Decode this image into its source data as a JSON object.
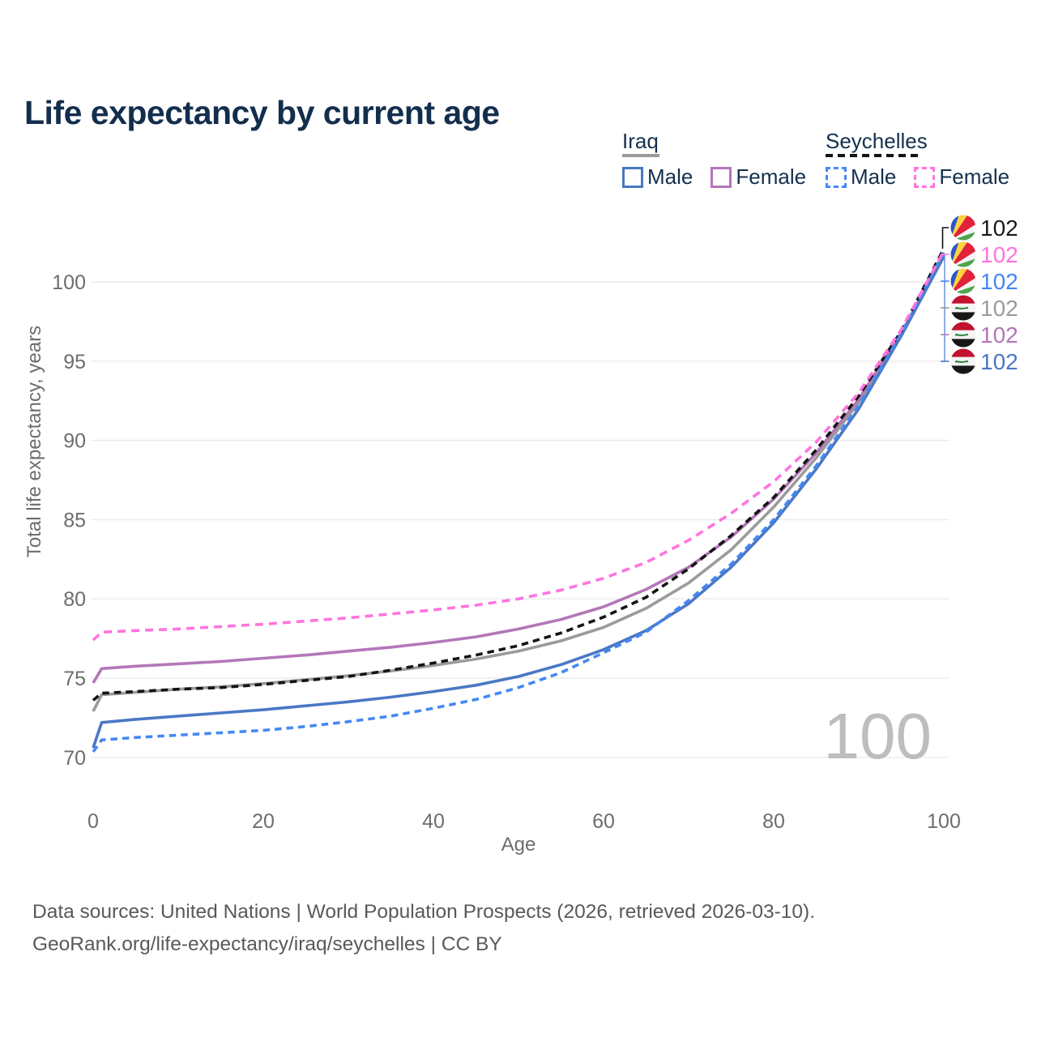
{
  "title": "Life expectancy by current age",
  "legend": {
    "groups": [
      {
        "country": "Iraq",
        "line_style": "solid",
        "underline_color": "#9a9a9a",
        "items": [
          {
            "label": "Male",
            "color": "#4a78c4"
          },
          {
            "label": "Female",
            "color": "#b377b9"
          }
        ]
      },
      {
        "country": "Seychelles",
        "line_style": "dashed",
        "underline_color": "#151515",
        "items": [
          {
            "label": "Male",
            "color": "#4488f2"
          },
          {
            "label": "Female",
            "color": "#ff74de"
          }
        ]
      }
    ]
  },
  "chart_data": {
    "type": "line",
    "title": "Life expectancy by current age",
    "xlabel": "Age",
    "ylabel": "Total life expectancy, years",
    "x_ticks": [
      0,
      20,
      40,
      60,
      80,
      100
    ],
    "y_ticks": [
      70,
      75,
      80,
      85,
      90,
      95,
      100
    ],
    "xlim": [
      0,
      100
    ],
    "ylim": [
      69.5,
      103
    ],
    "grid": "horizontal-only",
    "legend_position": "top-right",
    "ages": [
      0,
      1,
      5,
      10,
      15,
      20,
      25,
      30,
      35,
      40,
      45,
      50,
      55,
      60,
      65,
      70,
      75,
      80,
      85,
      90,
      95,
      100
    ],
    "series": [
      {
        "name": "Iraq — Total",
        "country": "Iraq",
        "sex": "total",
        "color": "#9b9b9b",
        "dashed": false,
        "values": [
          72.9,
          73.95,
          74.1,
          74.3,
          74.45,
          74.65,
          74.9,
          75.15,
          75.45,
          75.8,
          76.2,
          76.7,
          77.35,
          78.2,
          79.4,
          81.0,
          83.1,
          85.8,
          88.9,
          92.4,
          96.7,
          101.75
        ]
      },
      {
        "name": "Iraq — Female",
        "country": "Iraq",
        "sex": "female",
        "color": "#b377b9",
        "dashed": false,
        "values": [
          74.7,
          75.6,
          75.75,
          75.9,
          76.05,
          76.25,
          76.45,
          76.7,
          76.95,
          77.25,
          77.6,
          78.1,
          78.7,
          79.5,
          80.6,
          82.0,
          83.9,
          86.3,
          89.2,
          92.6,
          96.8,
          101.7
        ]
      },
      {
        "name": "Iraq — Male",
        "country": "Iraq",
        "sex": "male",
        "color": "#4a78c4",
        "dashed": false,
        "values": [
          70.6,
          72.2,
          72.4,
          72.6,
          72.8,
          73.0,
          73.25,
          73.5,
          73.8,
          74.15,
          74.55,
          75.1,
          75.85,
          76.8,
          78.0,
          79.7,
          82.0,
          84.8,
          88.2,
          92.0,
          96.6,
          101.6
        ]
      },
      {
        "name": "Seychelles — Total",
        "country": "Seychelles",
        "sex": "total",
        "color": "#141414",
        "dashed": true,
        "values": [
          73.6,
          74.05,
          74.15,
          74.3,
          74.4,
          74.6,
          74.85,
          75.1,
          75.5,
          75.95,
          76.45,
          77.05,
          77.85,
          78.85,
          80.1,
          81.9,
          84.0,
          86.4,
          89.4,
          92.8,
          96.9,
          102.1
        ]
      },
      {
        "name": "Seychelles — Male",
        "country": "Seychelles",
        "sex": "male",
        "color": "#4488f2",
        "dashed": true,
        "values": [
          70.35,
          71.1,
          71.25,
          71.4,
          71.55,
          71.7,
          71.95,
          72.25,
          72.6,
          73.1,
          73.65,
          74.4,
          75.35,
          76.6,
          77.9,
          79.9,
          82.2,
          85.0,
          88.4,
          92.2,
          96.75,
          101.85
        ]
      },
      {
        "name": "Seychelles — Female",
        "country": "Seychelles",
        "sex": "female",
        "color": "#ff74de",
        "dashed": true,
        "values": [
          77.4,
          77.9,
          78.0,
          78.1,
          78.25,
          78.4,
          78.6,
          78.8,
          79.05,
          79.3,
          79.6,
          80.0,
          80.55,
          81.3,
          82.3,
          83.7,
          85.4,
          87.4,
          89.9,
          93.0,
          97.0,
          101.95
        ]
      }
    ]
  },
  "value_labels": [
    {
      "flag": "seychelles",
      "series": "Seychelles — Total",
      "value": "102",
      "color": "#1a1a1a"
    },
    {
      "flag": "seychelles",
      "series": "Seychelles — Female",
      "value": "102",
      "color": "#ff74de"
    },
    {
      "flag": "seychelles",
      "series": "Seychelles — Male",
      "value": "102",
      "color": "#4488f2"
    },
    {
      "flag": "iraq",
      "series": "Iraq — Total",
      "value": "102",
      "color": "#9b9b9b"
    },
    {
      "flag": "iraq",
      "series": "Iraq — Female",
      "value": "102",
      "color": "#b377b9"
    },
    {
      "flag": "iraq",
      "series": "Iraq — Male",
      "value": "102",
      "color": "#4a78c4"
    }
  ],
  "watermark": "100",
  "footer": {
    "line1": "Data sources: United Nations | World Population Prospects (2026, retrieved 2026-03-10).",
    "line2": "GeoRank.org/life-expectancy/iraq/seychelles | CC BY"
  },
  "colors": {
    "title_text": "#132e4d",
    "legend_text": "#14304f",
    "axis_text": "#6d6d6d",
    "gridline": "#ebebeb",
    "watermark": "#bdbdbd",
    "footer_text": "#56595d"
  }
}
